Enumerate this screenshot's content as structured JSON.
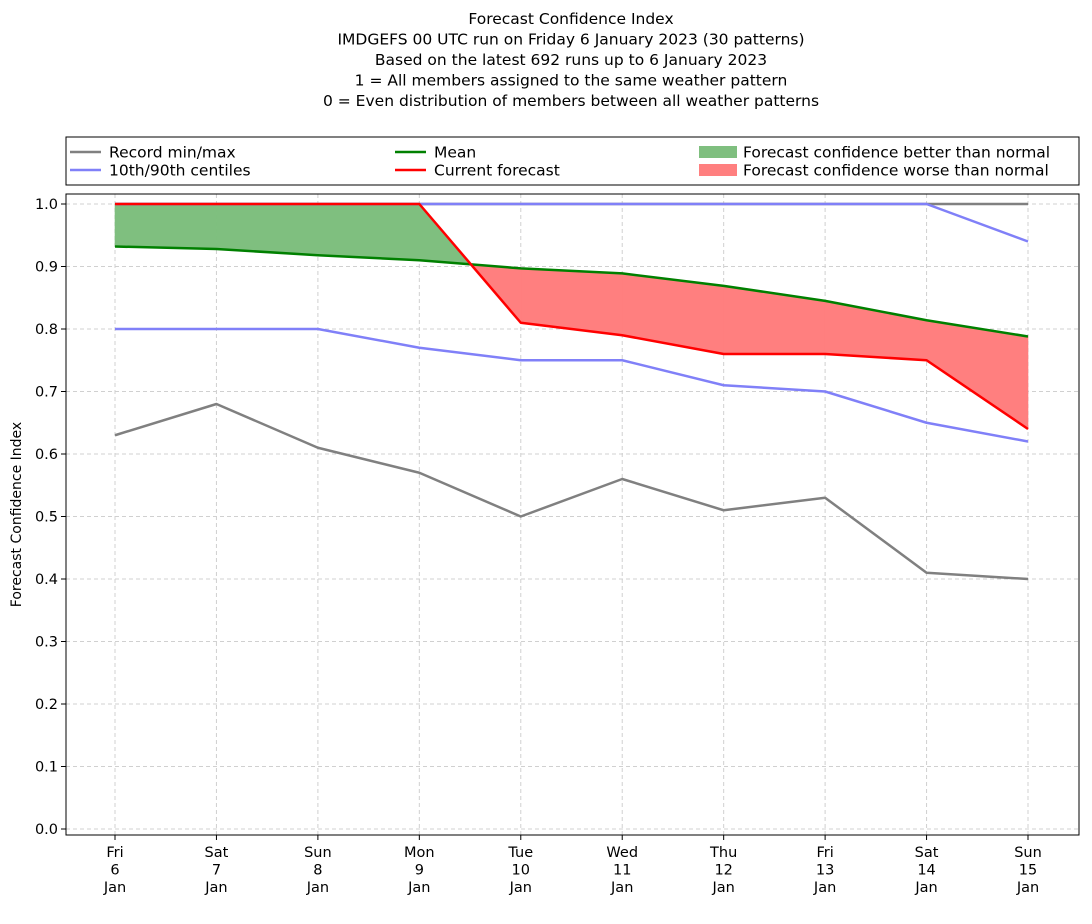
{
  "chart_data": {
    "type": "line",
    "title_lines": [
      "Forecast Confidence Index",
      "IMDGEFS 00 UTC run on Friday 6 January 2023 (30 patterns)",
      "Based on the latest 692 runs up to 6 January 2023",
      "1 = All members assigned to the same weather pattern",
      "0 = Even distribution of members between all weather patterns"
    ],
    "ylabel": "Forecast Confidence Index",
    "xlabel": "",
    "ylim": [
      0.0,
      1.0
    ],
    "yticks": [
      "0.0",
      "0.1",
      "0.2",
      "0.3",
      "0.4",
      "0.5",
      "0.6",
      "0.7",
      "0.8",
      "0.9",
      "1.0"
    ],
    "grid": true,
    "categories": [
      [
        "Fri",
        "6",
        "Jan"
      ],
      [
        "Sat",
        "7",
        "Jan"
      ],
      [
        "Sun",
        "8",
        "Jan"
      ],
      [
        "Mon",
        "9",
        "Jan"
      ],
      [
        "Tue",
        "10",
        "Jan"
      ],
      [
        "Wed",
        "11",
        "Jan"
      ],
      [
        "Thu",
        "12",
        "Jan"
      ],
      [
        "Fri",
        "13",
        "Jan"
      ],
      [
        "Sat",
        "14",
        "Jan"
      ],
      [
        "Sun",
        "15",
        "Jan"
      ]
    ],
    "series": [
      {
        "key": "record_min",
        "name": "Record min/max",
        "color": "#808080",
        "values": [
          0.63,
          0.68,
          0.61,
          0.57,
          0.5,
          0.56,
          0.51,
          0.53,
          0.41,
          0.4
        ]
      },
      {
        "key": "record_max",
        "name": "Record min/max",
        "color": "#808080",
        "values": [
          1.0,
          1.0,
          1.0,
          1.0,
          1.0,
          1.0,
          1.0,
          1.0,
          1.0,
          1.0
        ]
      },
      {
        "key": "p10",
        "name": "10th/90th centiles",
        "color": "#8080f8",
        "values": [
          0.8,
          0.8,
          0.8,
          0.77,
          0.75,
          0.75,
          0.71,
          0.7,
          0.65,
          0.62
        ]
      },
      {
        "key": "p90",
        "name": "10th/90th centiles",
        "color": "#8080f8",
        "values": [
          1.0,
          1.0,
          1.0,
          1.0,
          1.0,
          1.0,
          1.0,
          1.0,
          1.0,
          0.94
        ]
      },
      {
        "key": "mean",
        "name": "Mean",
        "color": "#008000",
        "values": [
          0.932,
          0.928,
          0.918,
          0.91,
          0.897,
          0.889,
          0.869,
          0.845,
          0.814,
          0.788
        ]
      },
      {
        "key": "current",
        "name": "Current forecast",
        "color": "#ff0000",
        "values": [
          1.0,
          1.0,
          1.0,
          1.0,
          0.81,
          0.79,
          0.76,
          0.76,
          0.75,
          0.64
        ]
      }
    ],
    "fills": {
      "better": {
        "name": "Forecast confidence better than normal",
        "color": "#7fbf7f"
      },
      "worse": {
        "name": "Forecast confidence worse than normal",
        "color": "#ff7f7f"
      }
    },
    "legend": {
      "placement": "top, above plot, 3 columns",
      "entries": [
        {
          "label": "Record min/max",
          "kind": "line",
          "color": "#808080"
        },
        {
          "label": "10th/90th centiles",
          "kind": "line",
          "color": "#8080f8"
        },
        {
          "label": "Mean",
          "kind": "line",
          "color": "#008000"
        },
        {
          "label": "Current forecast",
          "kind": "line",
          "color": "#ff0000"
        },
        {
          "label": "Forecast confidence better than normal",
          "kind": "patch",
          "color": "#7fbf7f"
        },
        {
          "label": "Forecast confidence worse than normal",
          "kind": "patch",
          "color": "#ff7f7f"
        }
      ]
    }
  }
}
